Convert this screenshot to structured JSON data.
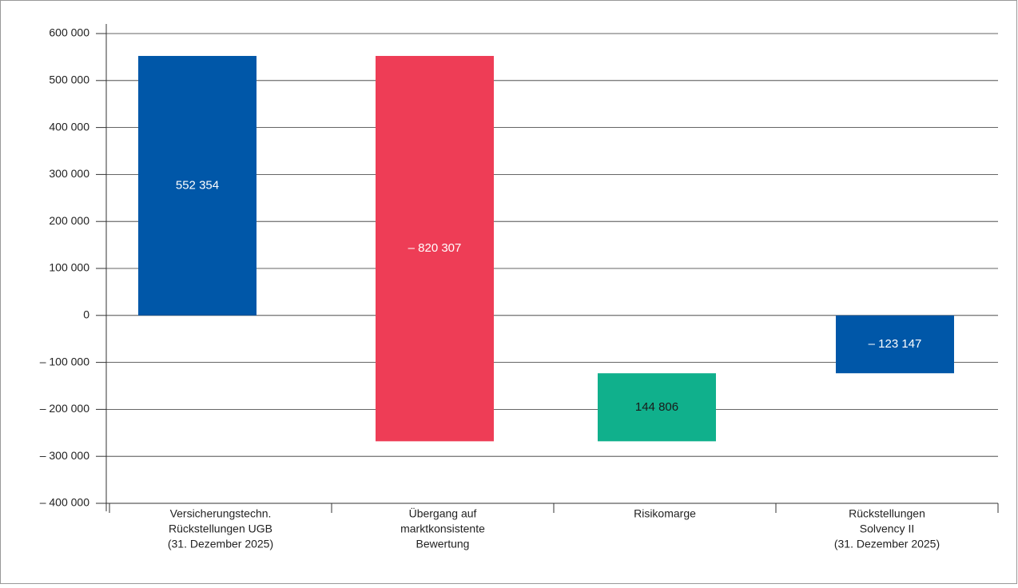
{
  "chart_data": {
    "type": "waterfall",
    "categories": [
      [
        "Versicherungstechn.",
        "Rückstellungen UGB",
        "(31. Dezember 2025)"
      ],
      [
        "Übergang auf",
        "marktkonsistente",
        "Bewertung"
      ],
      [
        "Risikomarge"
      ],
      [
        "Rückstellungen",
        "Solvency II",
        "(31. Dezember 2025)"
      ]
    ],
    "values": [
      552354,
      -820307,
      144806,
      -123147
    ],
    "value_labels": [
      "552 354",
      "– 820 307",
      "144 806",
      "– 123 147"
    ],
    "is_total": [
      true,
      false,
      false,
      true
    ],
    "colors": [
      "#0057a8",
      "#ee3d56",
      "#10b08c",
      "#0057a8"
    ],
    "label_colors": [
      "#ffffff",
      "#ffffff",
      "#1a1a1a",
      "#ffffff"
    ],
    "ylim": [
      -400000,
      600000
    ],
    "yticks": [
      {
        "value": -400000,
        "label": "– 400 000"
      },
      {
        "value": -300000,
        "label": "– 300 000"
      },
      {
        "value": -200000,
        "label": "– 200 000"
      },
      {
        "value": -100000,
        "label": "– 100 000"
      },
      0,
      {
        "value": 100000,
        "label": "100 000"
      },
      {
        "value": 200000,
        "label": "200 000"
      },
      {
        "value": 300000,
        "label": "300 000"
      },
      {
        "value": 400000,
        "label": "400 000"
      },
      {
        "value": 500000,
        "label": "500 000"
      },
      {
        "value": 600000,
        "label": "600 000"
      }
    ],
    "grid": true
  }
}
